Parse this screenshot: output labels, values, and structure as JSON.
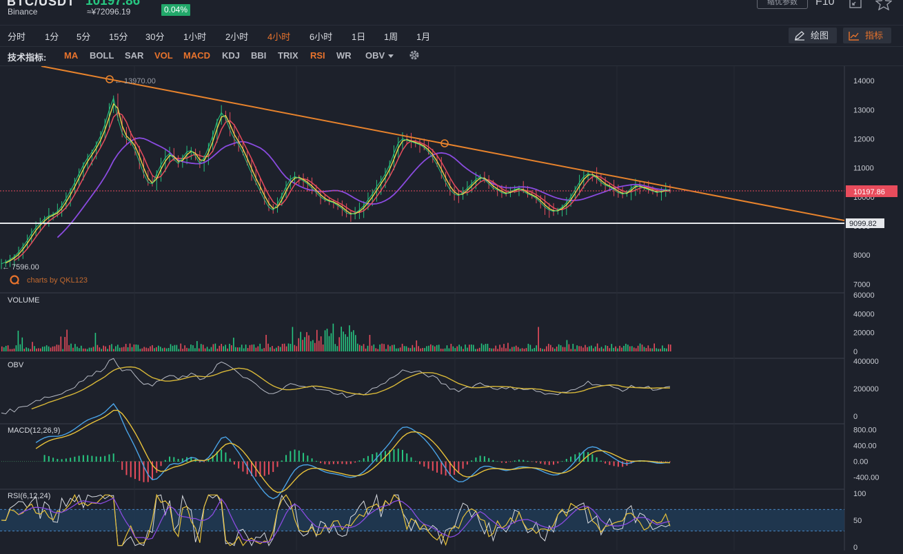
{
  "header": {
    "pair": "BTC/USDT",
    "last_price": "10197.86",
    "exchange": "Binance",
    "cny_price": "≈¥72096.19",
    "change_pct": "0.04%",
    "optimize_label": "缩优参数",
    "f10_label": "F10",
    "icons": [
      "fullscreen-icon",
      "star-icon"
    ]
  },
  "periods": {
    "items": [
      "分时",
      "1分",
      "5分",
      "15分",
      "30分",
      "1小时",
      "2小时",
      "4小时",
      "6小时",
      "1日",
      "1周",
      "1月"
    ],
    "active": "4小时"
  },
  "tools": {
    "draw_label": "绘图",
    "indicator_label": "指标"
  },
  "indicator_bar": {
    "label": "技术指标:",
    "items": [
      {
        "label": "MA",
        "active": true
      },
      {
        "label": "BOLL",
        "active": false
      },
      {
        "label": "SAR",
        "active": false
      },
      {
        "label": "VOL",
        "active": true
      },
      {
        "label": "MACD",
        "active": true
      },
      {
        "label": "KDJ",
        "active": false
      },
      {
        "label": "BBI",
        "active": false
      },
      {
        "label": "TRIX",
        "active": false
      },
      {
        "label": "RSI",
        "active": true
      },
      {
        "label": "WR",
        "active": false
      },
      {
        "label": "OBV",
        "active": false,
        "dropdown": true
      }
    ]
  },
  "colors": {
    "background": "#1d212b",
    "accent": "#e8732c",
    "up": "#27c580",
    "down": "#e84c5c",
    "ma_yellow": "#e8d84b",
    "ma_red": "#e84c5c",
    "ma_purple": "#8a4be0",
    "trendline": "#e8832c"
  },
  "main_chart": {
    "high_label": "13970.00",
    "low_label": "7596.00",
    "current_price": "10197.86",
    "support_price": "9099.82",
    "watermark": "charts by QKL123",
    "y_ticks": [
      "14000",
      "13000",
      "12000",
      "11000",
      "10000",
      "9000",
      "8000",
      "7000"
    ],
    "y_range": [
      6700,
      14500
    ],
    "close": [
      7700,
      7760,
      7850,
      7950,
      8100,
      8300,
      8500,
      8750,
      8950,
      9100,
      9250,
      9350,
      9400,
      9500,
      9700,
      9950,
      10200,
      10500,
      10800,
      11100,
      11350,
      11550,
      11800,
      12100,
      12500,
      13000,
      13400,
      12700,
      12200,
      12000,
      11900,
      11600,
      11200,
      10800,
      10500,
      10450,
      10800,
      11100,
      11350,
      11500,
      11300,
      11150,
      11350,
      11550,
      11600,
      11400,
      11150,
      11350,
      11700,
      12100,
      12600,
      12900,
      12700,
      12300,
      12000,
      11800,
      11500,
      11150,
      10800,
      10500,
      10200,
      9900,
      9650,
      9550,
      9750,
      10050,
      10350,
      10600,
      10700,
      10650,
      10550,
      10450,
      10300,
      10150,
      10000,
      9900,
      9850,
      9800,
      9700,
      9600,
      9450,
      9400,
      9450,
      9550,
      9700,
      9900,
      10100,
      10350,
      10550,
      10800,
      11100,
      11500,
      11850,
      12000,
      11950,
      11900,
      11850,
      11800,
      11700,
      11550,
      11350,
      11100,
      10800,
      10500,
      10250,
      10100,
      10050,
      10150,
      10300,
      10450,
      10600,
      10700,
      10600,
      10450,
      10300,
      10250,
      10150,
      10100,
      10200,
      10250,
      10300,
      10200,
      10100,
      10050,
      9950,
      9800,
      9650,
      9550,
      9500,
      9550,
      9650,
      9800,
      10000,
      10250,
      10500,
      10700,
      10800,
      10750,
      10650,
      10500,
      10400,
      10350,
      10250,
      10150,
      10100,
      10150,
      10300,
      10400,
      10350,
      10300,
      10250,
      10200,
      10150,
      10200,
      10250,
      10200
    ]
  },
  "volume_panel": {
    "label": "VOLUME",
    "y_ticks": [
      "60000",
      "40000",
      "20000",
      "0"
    ],
    "y_range": [
      0,
      60000
    ]
  },
  "obv_panel": {
    "label": "OBV",
    "y_ticks": [
      "400000",
      "200000",
      "0"
    ],
    "y_range": [
      0,
      400000
    ]
  },
  "macd_panel": {
    "label": "MACD(12,26,9)",
    "y_ticks": [
      "800.00",
      "400.00",
      "0.00",
      "-400.00"
    ],
    "y_range": [
      -600,
      900
    ]
  },
  "rsi_panel": {
    "label": "RSI(6,12,24)",
    "y_ticks": [
      "100",
      "50",
      "0"
    ],
    "y_range": [
      0,
      100
    ],
    "band": [
      30,
      70
    ]
  }
}
